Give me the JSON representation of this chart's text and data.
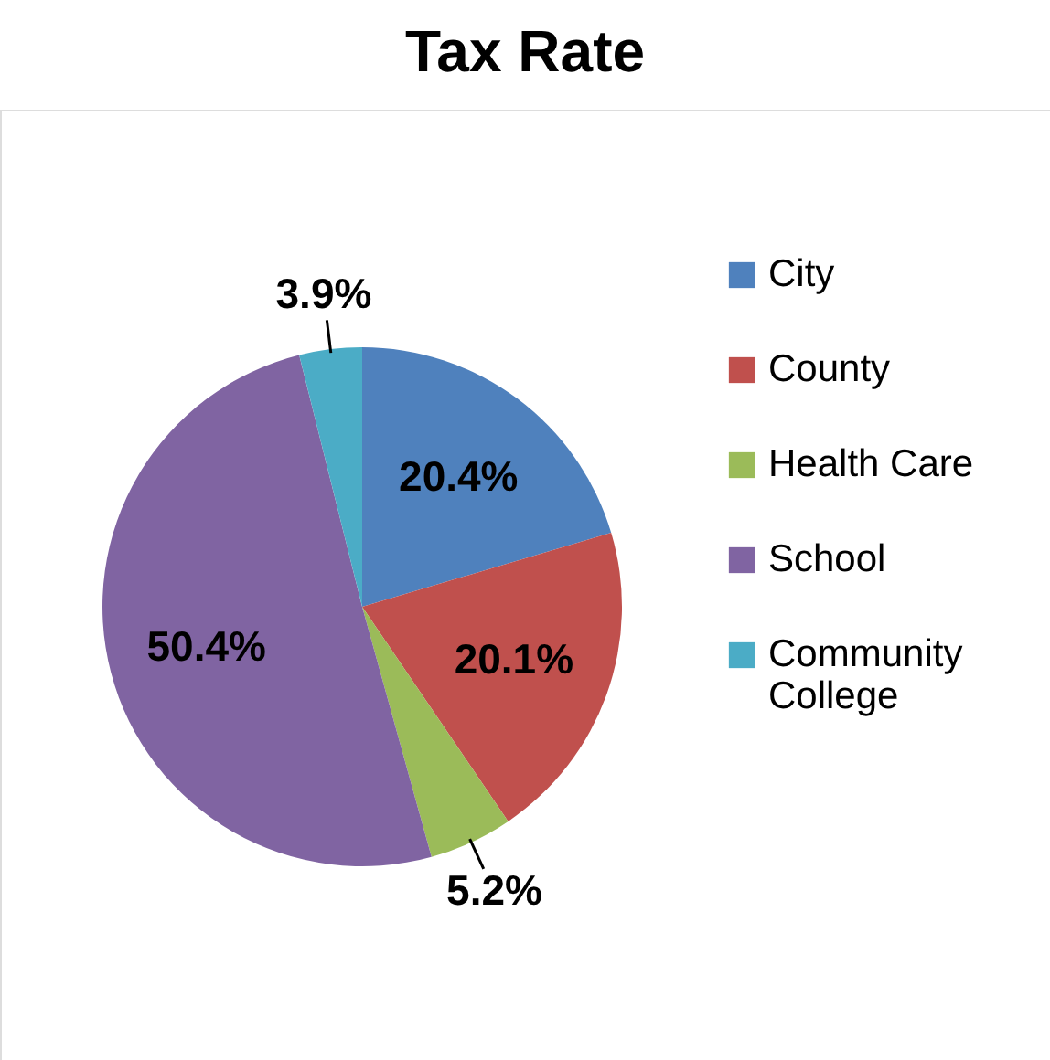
{
  "chart_data": {
    "type": "pie",
    "title": "Tax Rate",
    "categories": [
      "City",
      "County",
      "Health Care",
      "School",
      "Community College"
    ],
    "values": [
      20.4,
      20.1,
      5.2,
      50.4,
      3.9
    ],
    "value_labels": [
      "20.4%",
      "20.1%",
      "5.2%",
      "50.4%",
      "3.9%"
    ],
    "colors": [
      "#4f81bd",
      "#c0504d",
      "#9bbb59",
      "#8064a2",
      "#4bacc6"
    ],
    "legend": "right"
  }
}
